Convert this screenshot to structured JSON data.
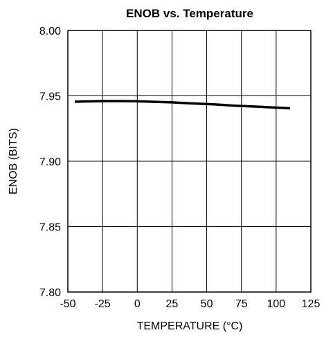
{
  "chart_data": {
    "type": "line",
    "title": "ENOB vs. Temperature",
    "xlabel": "TEMPERATURE (°C)",
    "ylabel": "ENOB (BITS)",
    "xlim": [
      -50,
      125
    ],
    "ylim": [
      7.8,
      8.0
    ],
    "x_ticks": [
      "-50",
      "-25",
      "0",
      "25",
      "50",
      "75",
      "100",
      "125"
    ],
    "y_ticks": [
      "7.80",
      "7.85",
      "7.90",
      "7.95",
      "8.00"
    ],
    "grid": true,
    "series": [
      {
        "color": "#000000",
        "x": [
          -45,
          -25,
          -10,
          0,
          10,
          25,
          40,
          55,
          70,
          85,
          100,
          110
        ],
        "y": [
          7.9455,
          7.946,
          7.946,
          7.9458,
          7.9455,
          7.945,
          7.9442,
          7.9435,
          7.9425,
          7.9418,
          7.941,
          7.9405
        ]
      }
    ]
  }
}
